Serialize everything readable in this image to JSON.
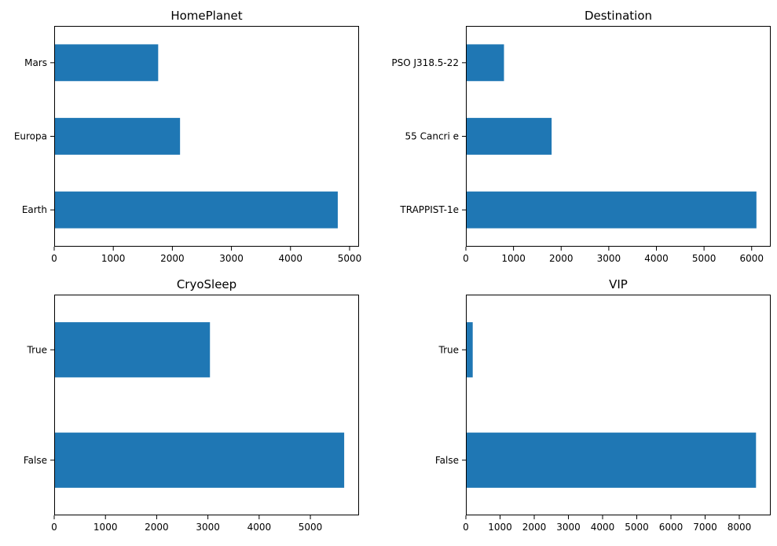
{
  "chart_data": [
    {
      "type": "bar",
      "orientation": "horizontal",
      "title": "HomePlanet",
      "xlabel": "",
      "ylabel": "",
      "categories": [
        "Earth",
        "Europa",
        "Mars"
      ],
      "values": [
        4800,
        2130,
        1760
      ],
      "xlim": [
        0,
        5160
      ],
      "xticks": [
        0,
        1000,
        2000,
        3000,
        4000,
        5000
      ],
      "color": "#1f77b4"
    },
    {
      "type": "bar",
      "orientation": "horizontal",
      "title": "Destination",
      "xlabel": "",
      "ylabel": "",
      "categories": [
        "TRAPPIST-1e",
        "55 Cancri e",
        "PSO J318.5-22"
      ],
      "values": [
        6100,
        1800,
        800
      ],
      "xlim": [
        0,
        6400
      ],
      "xticks": [
        0,
        1000,
        2000,
        3000,
        4000,
        5000,
        6000
      ],
      "color": "#1f77b4"
    },
    {
      "type": "bar",
      "orientation": "horizontal",
      "title": "CryoSleep",
      "xlabel": "",
      "ylabel": "",
      "categories": [
        "False",
        "True"
      ],
      "values": [
        5660,
        3040
      ],
      "xlim": [
        0,
        5950
      ],
      "xticks": [
        0,
        1000,
        2000,
        3000,
        4000,
        5000
      ],
      "color": "#1f77b4"
    },
    {
      "type": "bar",
      "orientation": "horizontal",
      "title": "VIP",
      "xlabel": "",
      "ylabel": "",
      "categories": [
        "False",
        "True"
      ],
      "values": [
        8490,
        200
      ],
      "xlim": [
        0,
        8920
      ],
      "xticks": [
        0,
        1000,
        2000,
        3000,
        4000,
        5000,
        6000,
        7000,
        8000
      ],
      "color": "#1f77b4"
    }
  ]
}
